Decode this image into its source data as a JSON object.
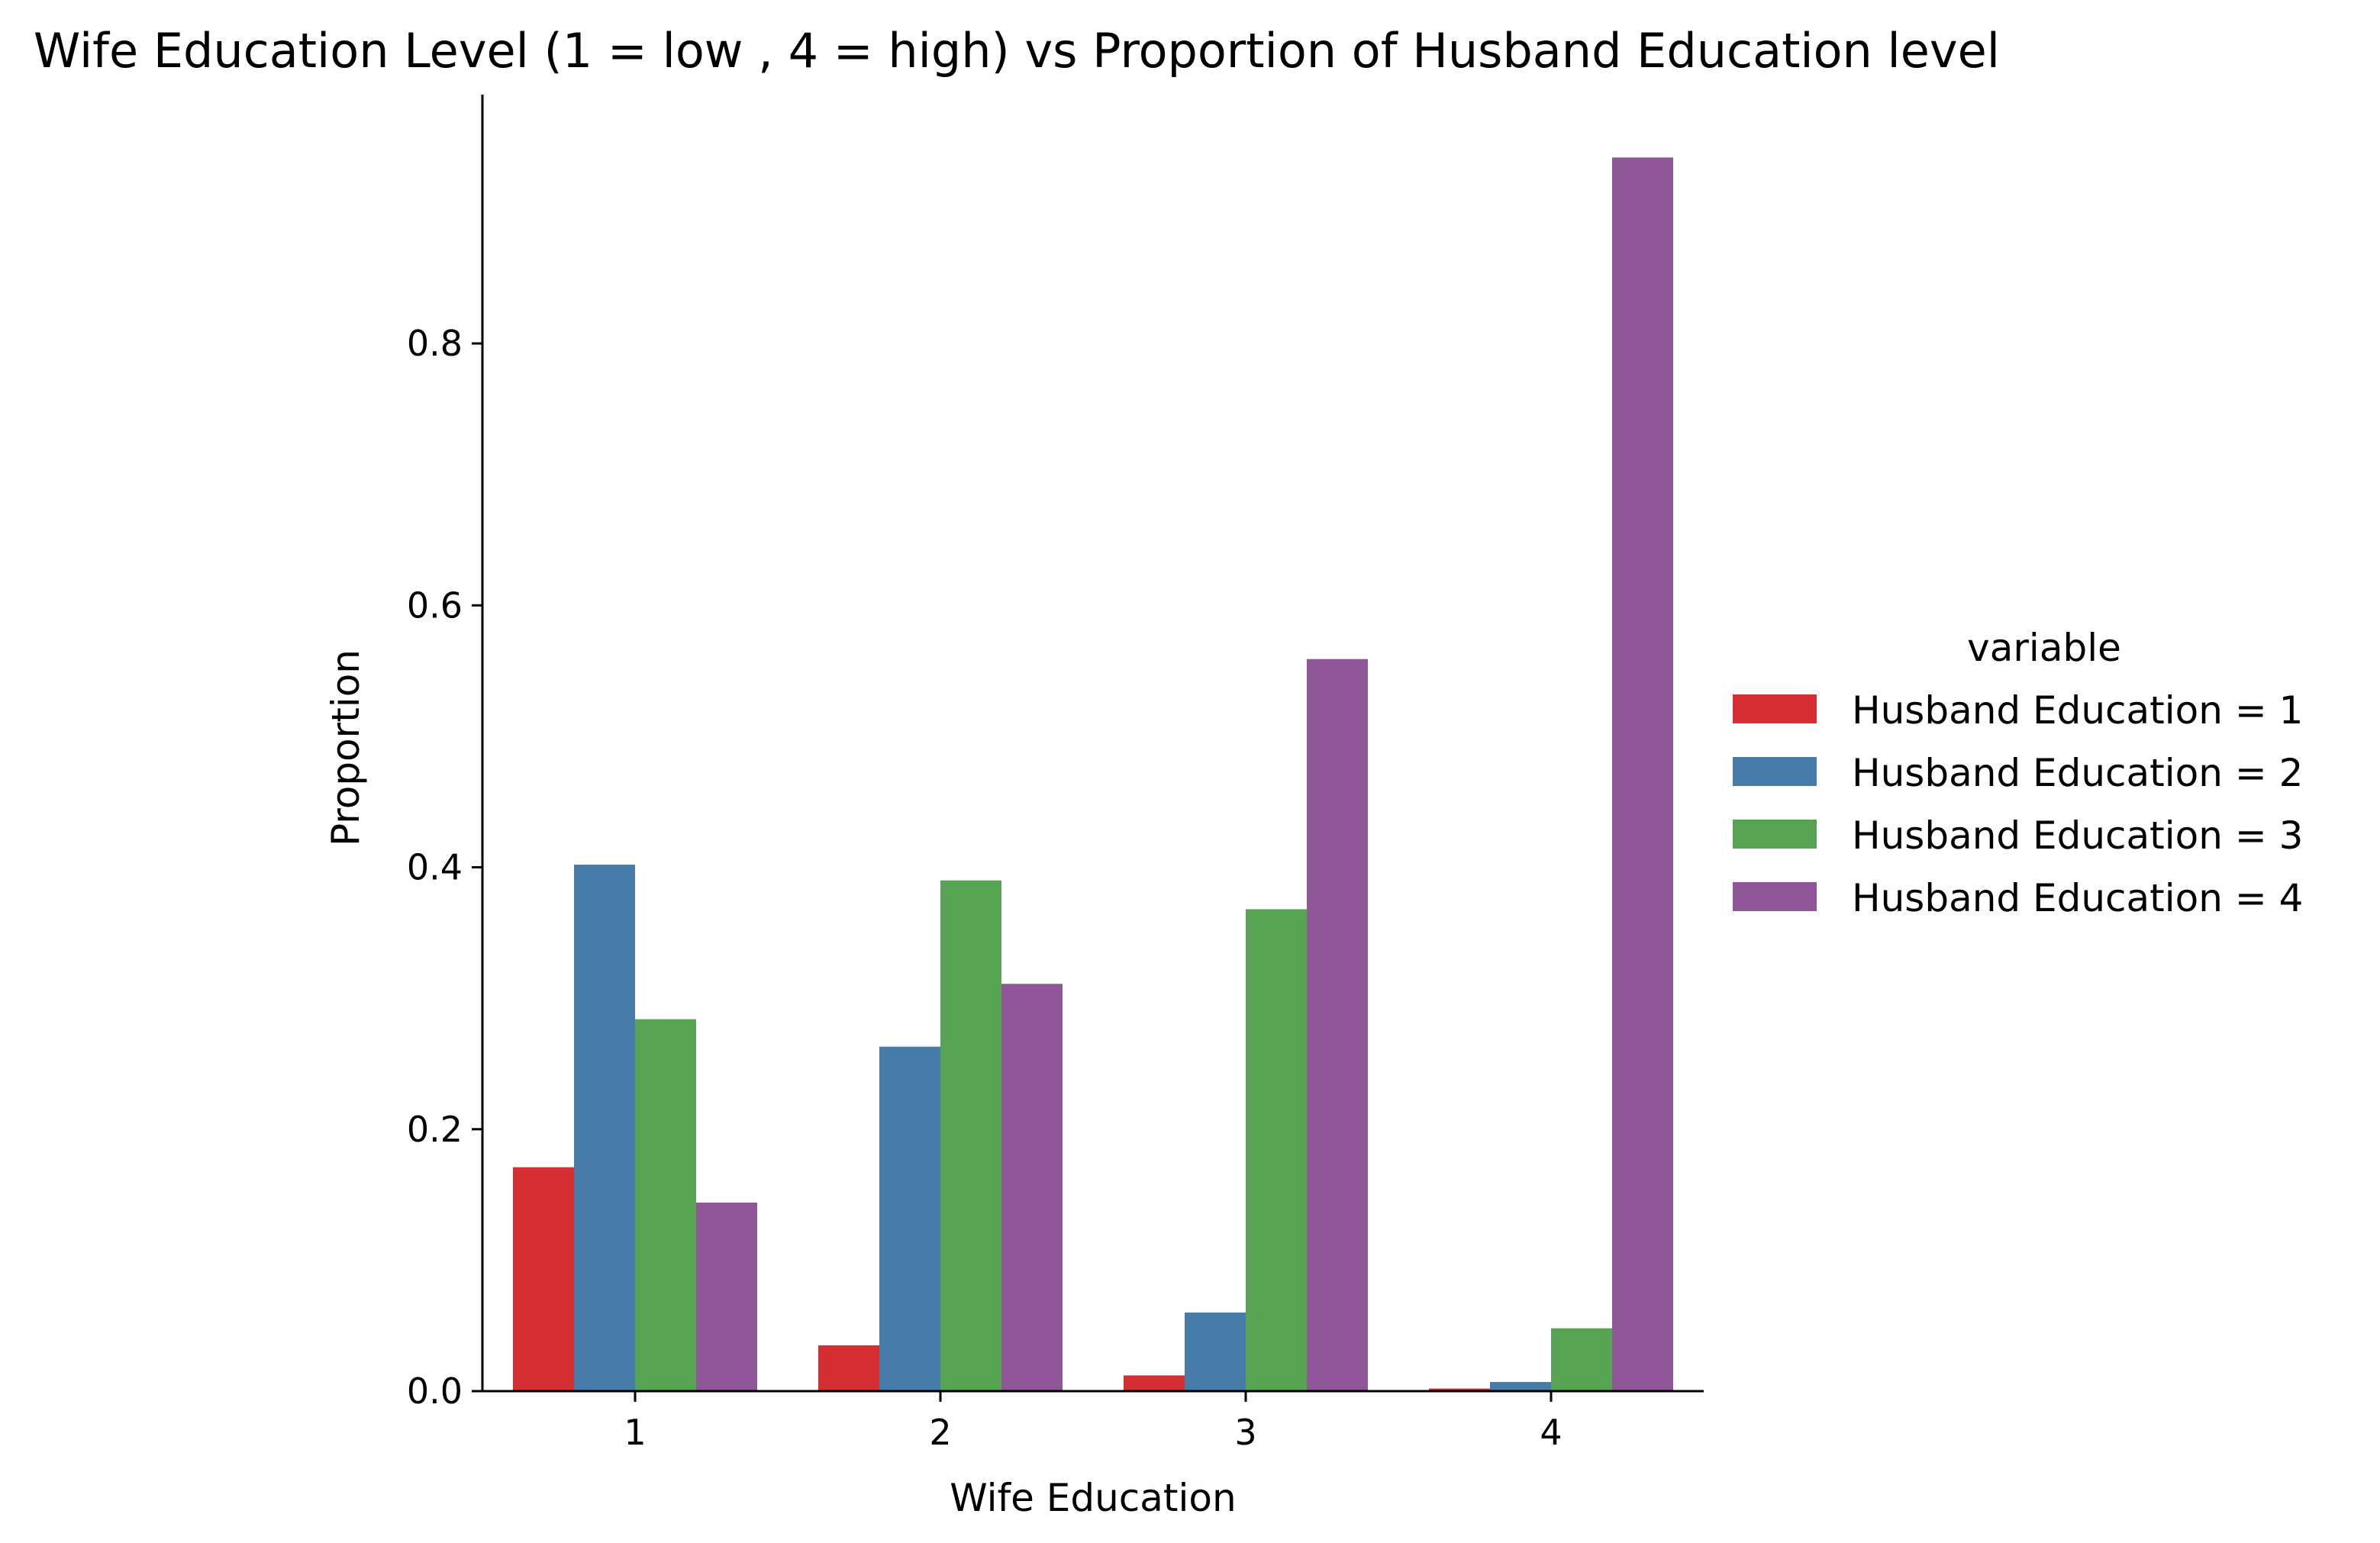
{
  "chart_data": {
    "type": "bar",
    "title": "Wife Education Level (1 = low , 4 = high) vs Proportion of Husband Education level",
    "xlabel": "Wife Education",
    "ylabel": "Proportion",
    "categories": [
      "1",
      "2",
      "3",
      "4"
    ],
    "ylim": [
      0,
      0.99
    ],
    "yticks": [
      0.0,
      0.2,
      0.4,
      0.6,
      0.8
    ],
    "ytick_labels": [
      "0.0",
      "0.2",
      "0.4",
      "0.6",
      "0.8"
    ],
    "grid": false,
    "legend_title": "variable",
    "legend_position": "right",
    "series": [
      {
        "name": "Husband Education = 1",
        "color": "#d62f33",
        "values": [
          0.171,
          0.035,
          0.012,
          0.002
        ]
      },
      {
        "name": "Husband Education = 2",
        "color": "#477ba8",
        "values": [
          0.402,
          0.263,
          0.06,
          0.007
        ]
      },
      {
        "name": "Husband Education = 3",
        "color": "#58a253",
        "values": [
          0.284,
          0.39,
          0.368,
          0.048
        ]
      },
      {
        "name": "Husband Education = 4",
        "color": "#8f5798",
        "values": [
          0.144,
          0.311,
          0.559,
          0.942
        ]
      }
    ]
  }
}
